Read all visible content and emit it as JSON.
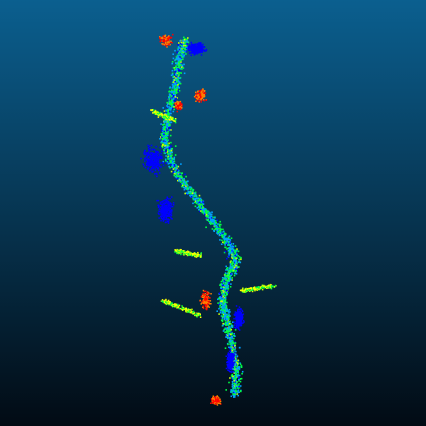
{
  "viewer": {
    "background": {
      "top_color": "#0b5f8f",
      "bottom_color": "#020b14"
    },
    "point_cloud": {
      "label": "",
      "colormap": [
        "#0000ff",
        "#00a0ff",
        "#00ff40",
        "#c8ff00",
        "#ffff00",
        "#ff8000",
        "#ff0000"
      ],
      "dominant_colors": {
        "blue": "#1414ff",
        "green": "#33e000",
        "yellow": "#f2ff00",
        "orange": "#ff8a00",
        "red": "#ff1e00"
      }
    }
  }
}
